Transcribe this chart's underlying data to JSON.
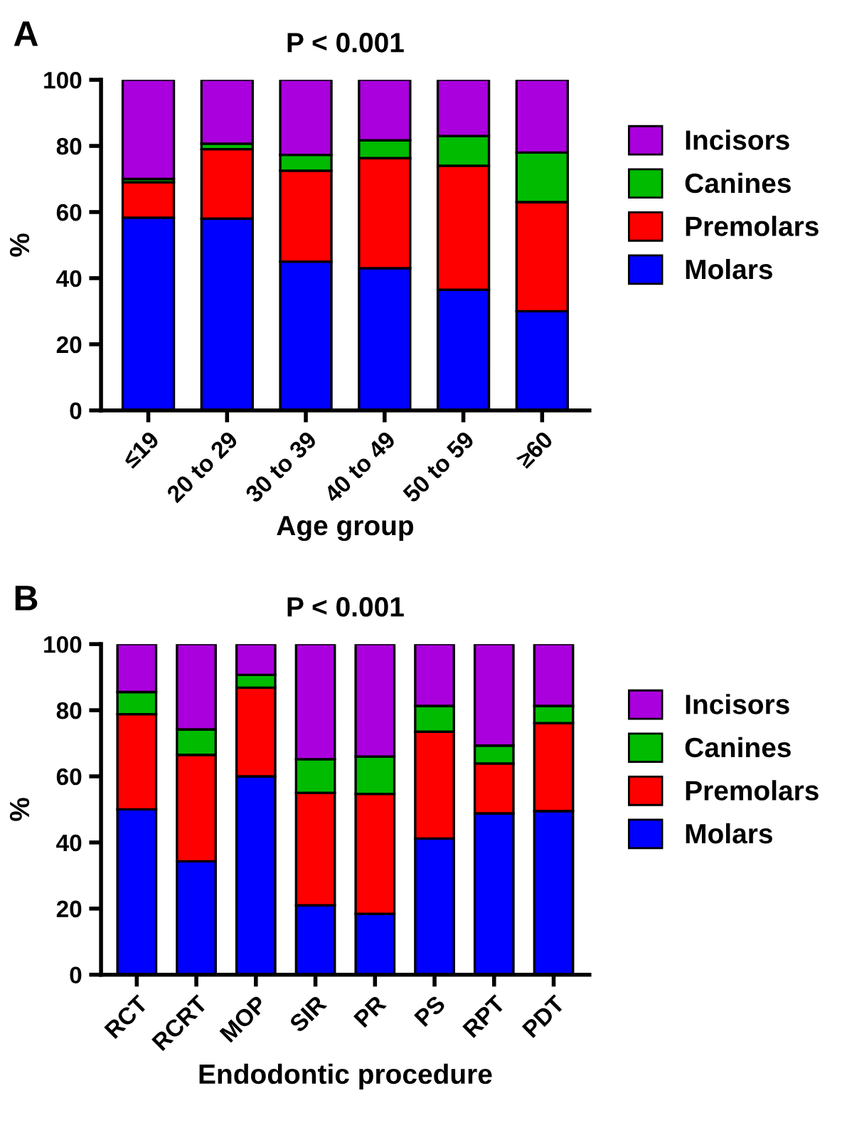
{
  "chart_data": [
    {
      "type": "bar",
      "stacked": true,
      "title": "P < 0.001",
      "xlabel": "Age group",
      "ylabel": "%",
      "annotations": [
        "A"
      ],
      "legend": "right",
      "grid": false,
      "categories": [
        "≤19",
        "20 to 29",
        "30 to 39",
        "40 to 49",
        "50 to 59",
        "≥60"
      ],
      "ylim": [
        0,
        100
      ],
      "yticks": [
        0,
        20,
        40,
        60,
        80,
        100
      ],
      "series": [
        {
          "name": "Molars",
          "color": "#0000ff",
          "values": [
            58.3,
            58,
            45,
            43,
            36.5,
            30
          ]
        },
        {
          "name": "Premolars",
          "color": "#ff0000",
          "values": [
            10.7,
            21,
            27.5,
            33.3,
            37.5,
            33
          ]
        },
        {
          "name": "Canines",
          "color": "#00bb00",
          "values": [
            1,
            1.7,
            4.8,
            5.4,
            9,
            15
          ]
        },
        {
          "name": "Incisors",
          "color": "#aa00dd",
          "values": [
            30,
            19.3,
            22.7,
            18.3,
            17,
            22
          ]
        }
      ]
    },
    {
      "type": "bar",
      "stacked": true,
      "title": "P < 0.001",
      "xlabel": "Endodontic procedure",
      "ylabel": "%",
      "annotations": [
        "B"
      ],
      "legend": "right",
      "grid": false,
      "categories": [
        "RCT",
        "RCRT",
        "MOP",
        "SIR",
        "PR",
        "PS",
        "RPT",
        "PDT"
      ],
      "ylim": [
        0,
        100
      ],
      "yticks": [
        0,
        20,
        40,
        60,
        80,
        100
      ],
      "series": [
        {
          "name": "Molars",
          "color": "#0000ff",
          "values": [
            50,
            34.3,
            60,
            21,
            18.4,
            41.2,
            48.8,
            49.5
          ]
        },
        {
          "name": "Premolars",
          "color": "#ff0000",
          "values": [
            28.8,
            32.2,
            26.8,
            34,
            36.3,
            32.3,
            15.1,
            26.6
          ]
        },
        {
          "name": "Canines",
          "color": "#00bb00",
          "values": [
            6.7,
            7.7,
            3.9,
            10.2,
            11.3,
            7.8,
            5.4,
            5.2
          ]
        },
        {
          "name": "Incisors",
          "color": "#aa00dd",
          "values": [
            14.5,
            25.8,
            9.3,
            34.8,
            34,
            18.7,
            30.7,
            18.7
          ]
        }
      ]
    }
  ]
}
